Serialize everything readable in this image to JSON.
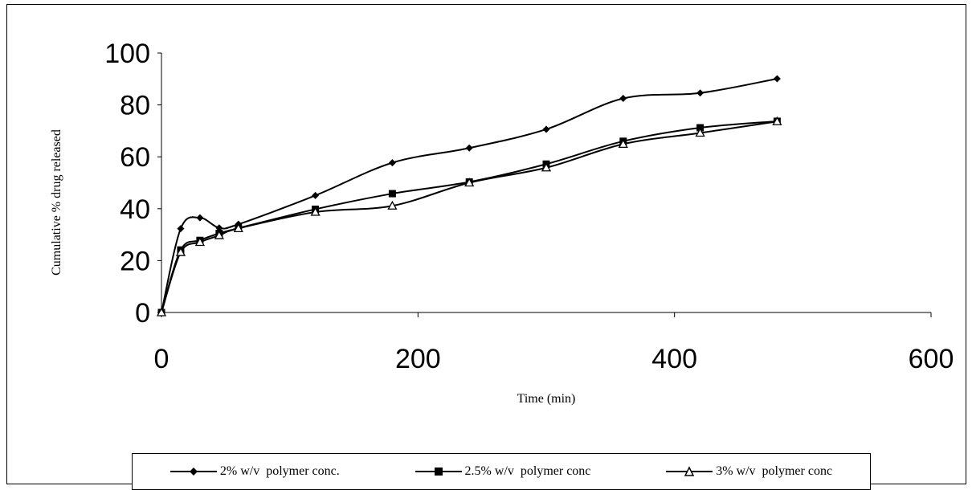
{
  "chart_data": {
    "type": "line",
    "xlabel": "Time (min)",
    "ylabel": "Cumulative % drug released",
    "xlim": [
      0,
      600
    ],
    "ylim": [
      0,
      100
    ],
    "x_ticks": [
      "0",
      "200",
      "400",
      "600"
    ],
    "y_ticks": [
      "0",
      "20",
      "40",
      "60",
      "80",
      "100"
    ],
    "grid": false,
    "legend_position": "bottom",
    "series": [
      {
        "name": "2% w/v  polymer conc.",
        "marker": "diamond",
        "color": "#000000",
        "x": [
          0,
          15,
          30,
          45,
          60,
          120,
          180,
          240,
          300,
          360,
          420,
          480
        ],
        "y": [
          0,
          32.3,
          36.5,
          32.6,
          34,
          45.1,
          57.7,
          63.4,
          70.6,
          82.5,
          84.6,
          90.1
        ]
      },
      {
        "name": "2.5% w/v  polymer conc",
        "marker": "square",
        "color": "#000000",
        "x": [
          0,
          15,
          30,
          45,
          60,
          120,
          180,
          240,
          300,
          360,
          420,
          480
        ],
        "y": [
          0,
          24.1,
          27.8,
          30.5,
          32.5,
          39.8,
          45.8,
          50.3,
          57.2,
          66,
          71.2,
          73.7
        ]
      },
      {
        "name": "3% w/v  polymer conc",
        "marker": "triangle",
        "color": "#000000",
        "x": [
          0,
          15,
          30,
          45,
          60,
          120,
          180,
          240,
          300,
          360,
          420,
          480
        ],
        "y": [
          0,
          23.2,
          27.1,
          29.7,
          32.4,
          38.7,
          41.1,
          50,
          55.8,
          64.9,
          69.2,
          73.6
        ]
      }
    ]
  }
}
